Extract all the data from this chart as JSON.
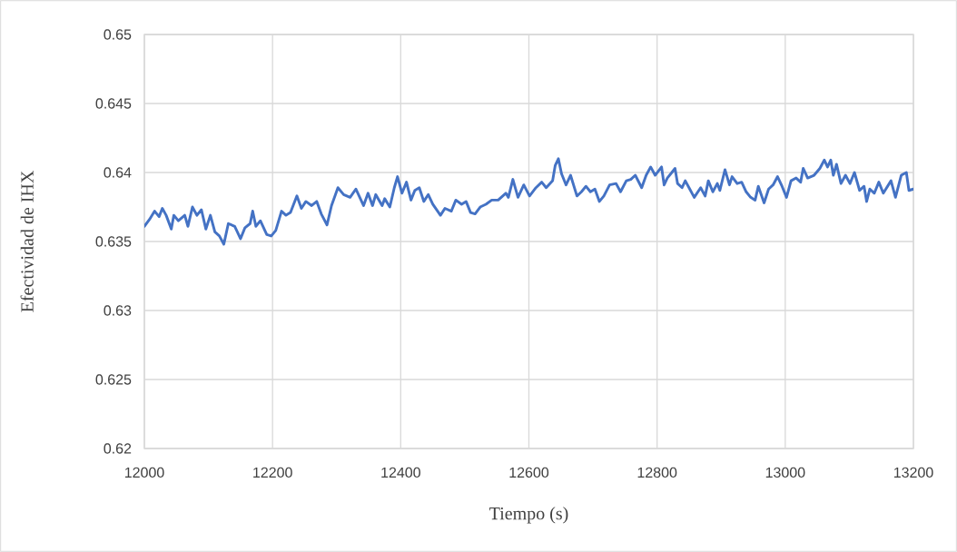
{
  "chart_data": {
    "type": "line",
    "xlabel": "Tiempo (s)",
    "ylabel": "Efectividad de IHX",
    "xlim": [
      12000,
      13200
    ],
    "ylim": [
      0.62,
      0.65
    ],
    "xticks": [
      12000,
      12200,
      12400,
      12600,
      12800,
      13000,
      13200
    ],
    "yticks": [
      0.62,
      0.625,
      0.63,
      0.635,
      0.64,
      0.645,
      0.65
    ],
    "grid": true,
    "x": [
      12000,
      12008,
      12016,
      12023,
      12028,
      12034,
      12042,
      12046,
      12053,
      12063,
      12068,
      12075,
      12082,
      12089,
      12096,
      12103,
      12110,
      12117,
      12124,
      12131,
      12141,
      12150,
      12157,
      12165,
      12169,
      12174,
      12181,
      12191,
      12198,
      12205,
      12214,
      12221,
      12228,
      12238,
      12245,
      12252,
      12261,
      12269,
      12276,
      12285,
      12292,
      12302,
      12311,
      12321,
      12330,
      12342,
      12349,
      12356,
      12361,
      12371,
      12375,
      12383,
      12390,
      12395,
      12402,
      12409,
      12416,
      12422,
      12429,
      12436,
      12443,
      12450,
      12462,
      12469,
      12479,
      12486,
      12495,
      12502,
      12509,
      12516,
      12524,
      12533,
      12542,
      12552,
      12564,
      12568,
      12575,
      12583,
      12592,
      12601,
      12611,
      12620,
      12627,
      12637,
      12641,
      12646,
      12651,
      12658,
      12665,
      12675,
      12682,
      12689,
      12696,
      12703,
      12710,
      12717,
      12726,
      12736,
      12743,
      12752,
      12759,
      12766,
      12776,
      12783,
      12790,
      12797,
      12807,
      12811,
      12816,
      12823,
      12828,
      12832,
      12839,
      12844,
      12851,
      12858,
      12868,
      12875,
      12880,
      12887,
      12894,
      12898,
      12906,
      12913,
      12917,
      12925,
      12932,
      12939,
      12946,
      12953,
      12958,
      12967,
      12974,
      12981,
      12988,
      12995,
      13002,
      13009,
      13017,
      13024,
      13028,
      13035,
      13045,
      13054,
      13061,
      13066,
      13071,
      13075,
      13080,
      13087,
      13094,
      13101,
      13108,
      13116,
      13123,
      13127,
      13132,
      13139,
      13146,
      13153,
      13165,
      13172,
      13181,
      13189,
      13193,
      13200
    ],
    "series": [
      {
        "color": "#4472c4",
        "values": [
          0.6361,
          0.6366,
          0.6372,
          0.6368,
          0.6374,
          0.6369,
          0.6359,
          0.6369,
          0.6365,
          0.6369,
          0.6361,
          0.6375,
          0.6369,
          0.6373,
          0.6359,
          0.6369,
          0.6357,
          0.6354,
          0.6348,
          0.6363,
          0.6361,
          0.6352,
          0.636,
          0.6363,
          0.6372,
          0.6361,
          0.6365,
          0.6355,
          0.6354,
          0.6358,
          0.6372,
          0.6369,
          0.6371,
          0.6383,
          0.6374,
          0.6379,
          0.6376,
          0.6379,
          0.637,
          0.6362,
          0.6376,
          0.6389,
          0.6384,
          0.6382,
          0.6388,
          0.6376,
          0.6385,
          0.6376,
          0.6384,
          0.6376,
          0.6381,
          0.6375,
          0.6389,
          0.6397,
          0.6385,
          0.6393,
          0.638,
          0.6387,
          0.6389,
          0.6379,
          0.6384,
          0.6377,
          0.6369,
          0.6374,
          0.6372,
          0.638,
          0.6377,
          0.6379,
          0.6371,
          0.637,
          0.6375,
          0.6377,
          0.638,
          0.638,
          0.6385,
          0.6382,
          0.6395,
          0.6382,
          0.6391,
          0.6383,
          0.6389,
          0.6393,
          0.6389,
          0.6394,
          0.6405,
          0.641,
          0.6399,
          0.6391,
          0.6398,
          0.6383,
          0.6386,
          0.639,
          0.6386,
          0.6388,
          0.6379,
          0.6383,
          0.6391,
          0.6392,
          0.6386,
          0.6394,
          0.6395,
          0.6398,
          0.6389,
          0.6398,
          0.6404,
          0.6398,
          0.6404,
          0.6391,
          0.6396,
          0.64,
          0.6403,
          0.6392,
          0.6389,
          0.6394,
          0.6388,
          0.6382,
          0.6389,
          0.6383,
          0.6394,
          0.6386,
          0.6392,
          0.6387,
          0.6402,
          0.6391,
          0.6397,
          0.6392,
          0.6393,
          0.6386,
          0.6382,
          0.638,
          0.639,
          0.6378,
          0.6388,
          0.6391,
          0.6397,
          0.639,
          0.6382,
          0.6394,
          0.6396,
          0.6393,
          0.6403,
          0.6396,
          0.6398,
          0.6403,
          0.6409,
          0.6404,
          0.6409,
          0.6398,
          0.6406,
          0.6392,
          0.6398,
          0.6392,
          0.64,
          0.6387,
          0.639,
          0.6379,
          0.6388,
          0.6385,
          0.6393,
          0.6385,
          0.6394,
          0.6382,
          0.6398,
          0.64,
          0.6387,
          0.6388
        ]
      }
    ]
  }
}
